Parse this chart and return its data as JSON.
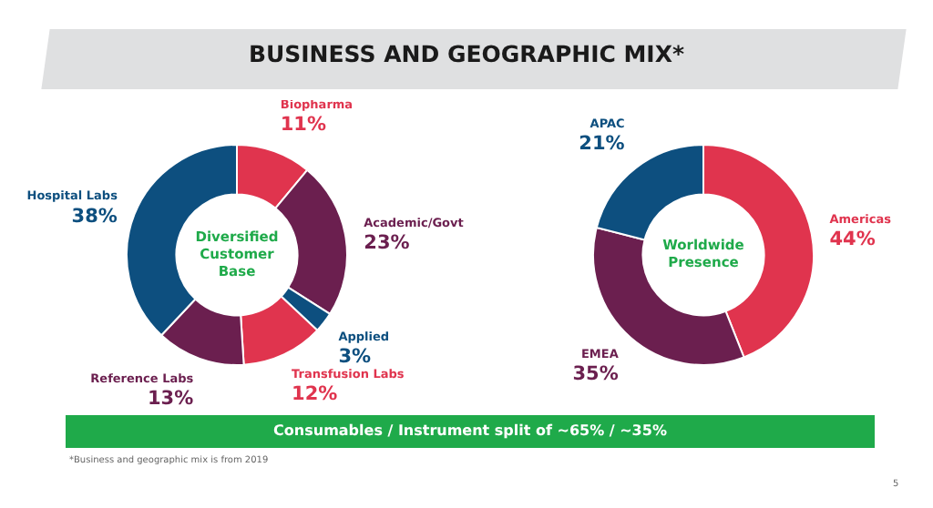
{
  "chart_data": [
    {
      "type": "donut",
      "title": "BUSINESS AND GEOGRAPHIC MIX*",
      "subtitle": "Diversified Customer Base",
      "categories": [
        "Biopharma",
        "Academic/Govt",
        "Applied",
        "Transfusion Labs",
        "Reference Labs",
        "Hospital Labs"
      ],
      "values": [
        11,
        23,
        3,
        12,
        13,
        38
      ],
      "value_labels": [
        "11%",
        "23%",
        "3%",
        "12%",
        "13%",
        "38%"
      ],
      "colors": [
        "#e0344e",
        "#6b1f4f",
        "#0d4f7f",
        "#e0344e",
        "#6b1f4f",
        "#0d4f7f"
      ],
      "legend": false
    },
    {
      "type": "donut",
      "subtitle": "Worldwide Presence",
      "categories": [
        "Americas",
        "EMEA",
        "APAC"
      ],
      "values": [
        44,
        35,
        21
      ],
      "value_labels": [
        "44%",
        "35%",
        "21%"
      ],
      "colors": [
        "#e0344e",
        "#6b1f4f",
        "#0d4f7f"
      ],
      "legend": false,
      "annotations": [
        "Consumables / Instrument split of ~65% / ~35%",
        "*Business and geographic mix is from 2019",
        "5"
      ]
    }
  ]
}
